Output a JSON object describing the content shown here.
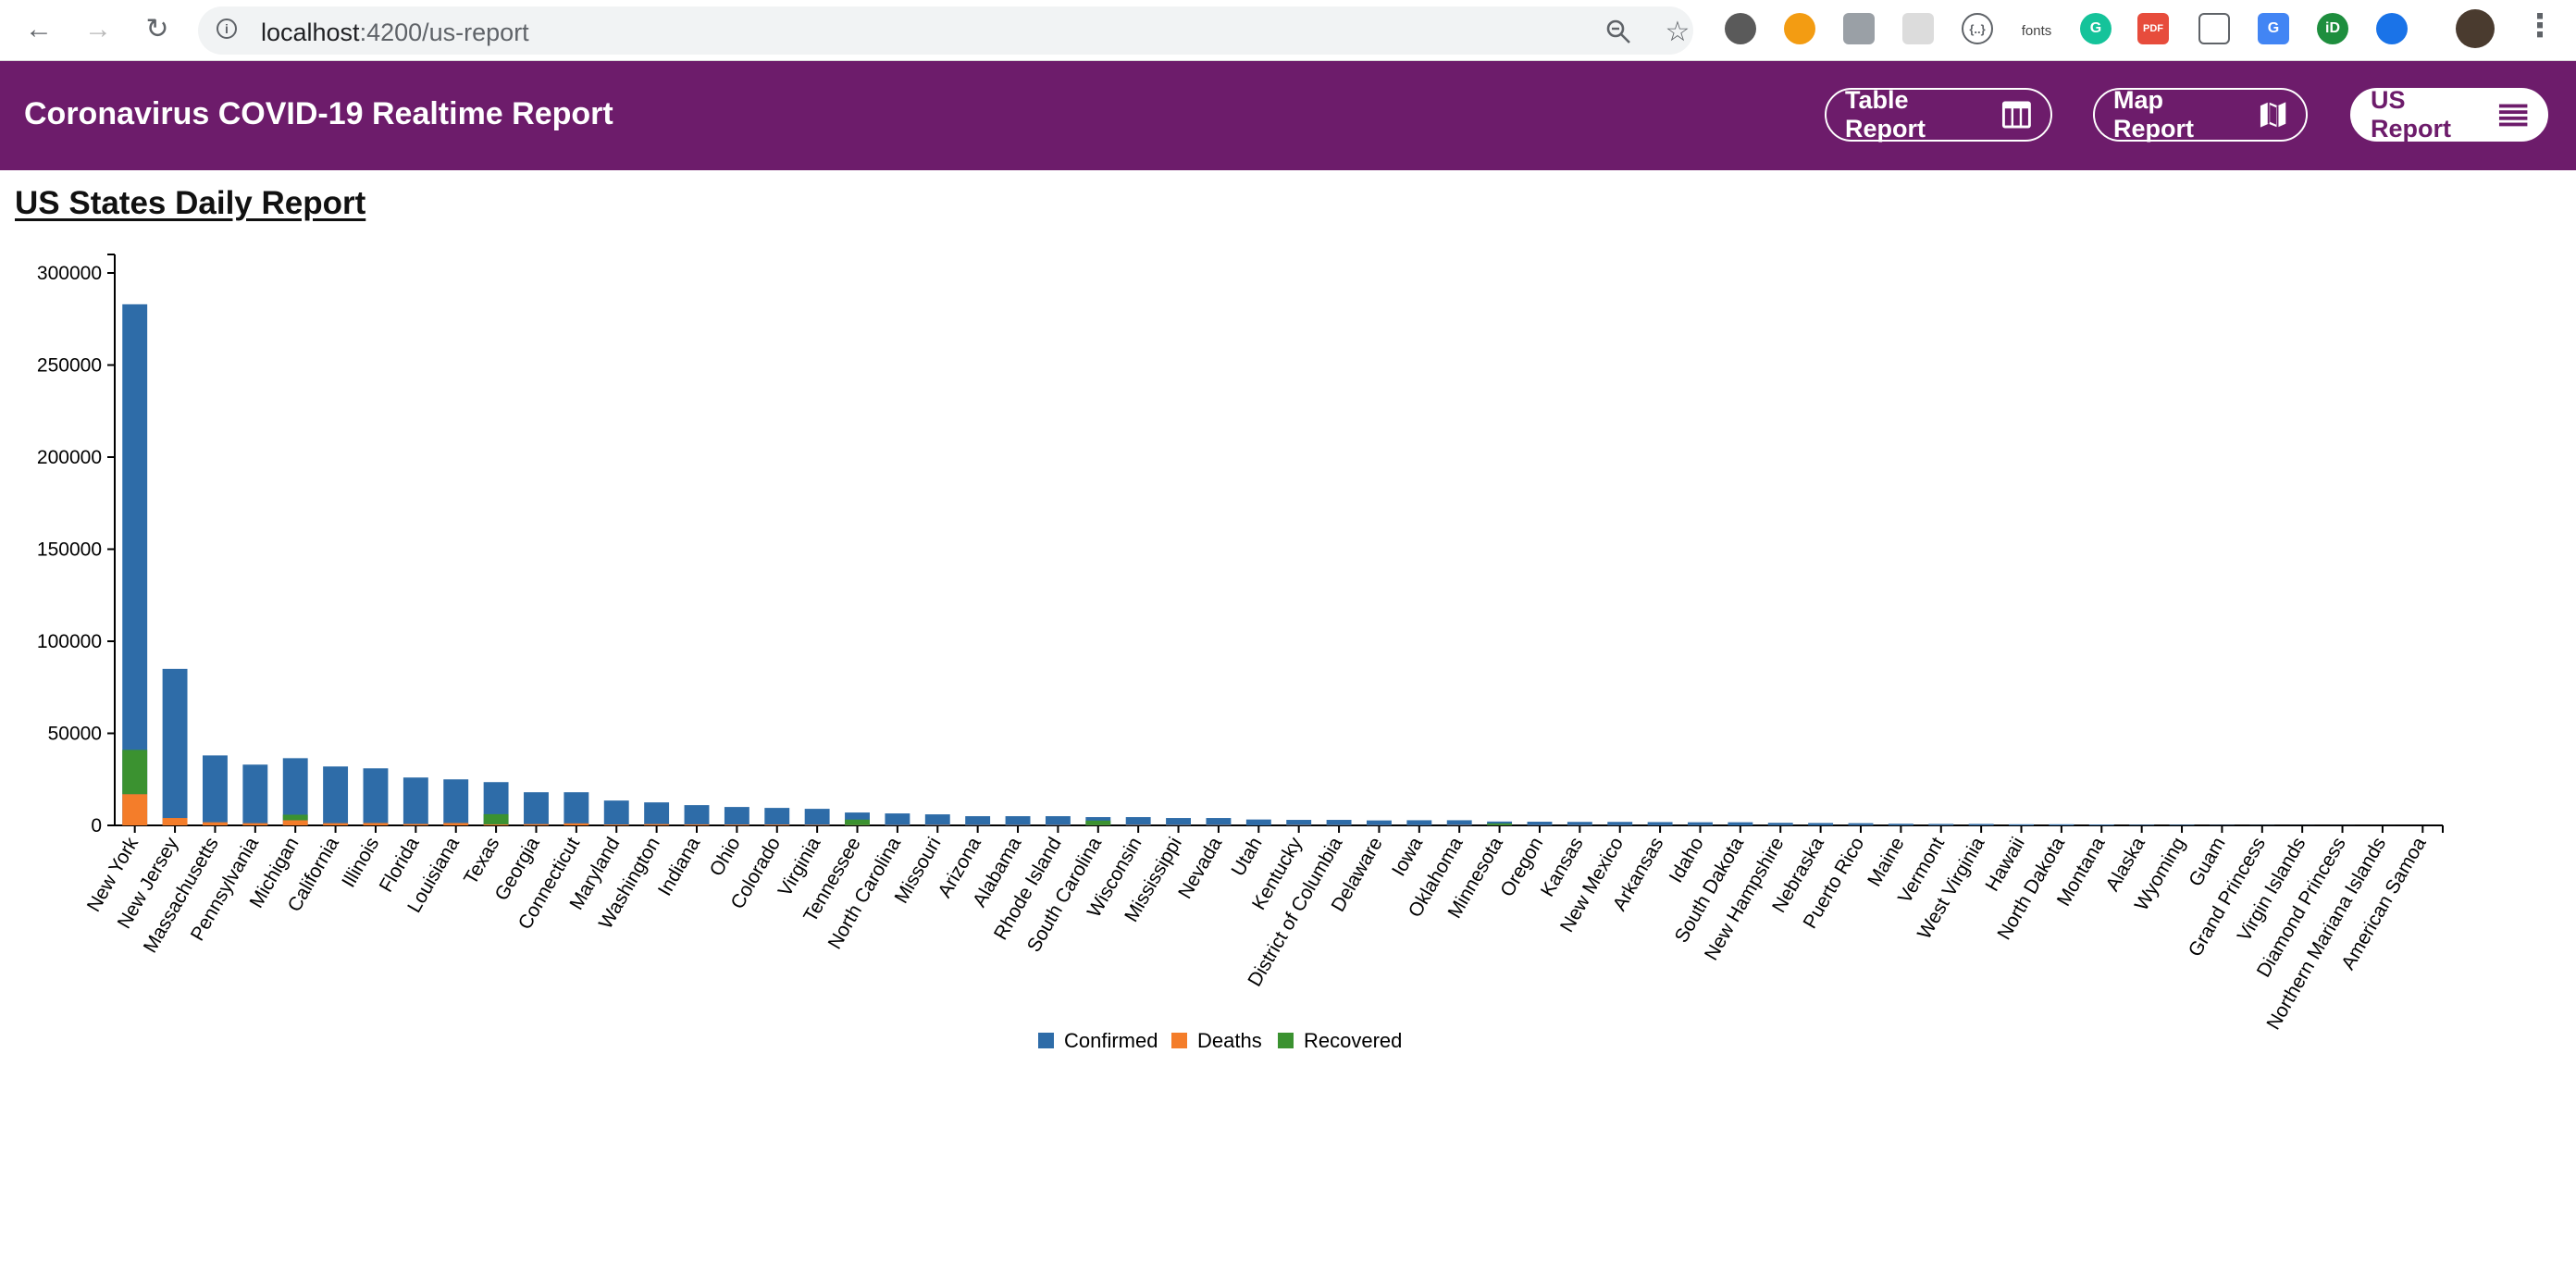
{
  "browser": {
    "url_host": "localhost",
    "url_path": ":4200/us-report",
    "extension_fonts_label": "fonts"
  },
  "header": {
    "title": "Coronavirus COVID-19 Realtime Report",
    "buttons": [
      {
        "label": "Table Report",
        "icon": "table-icon",
        "active": false
      },
      {
        "label": "Map Report",
        "icon": "map-icon",
        "active": false
      },
      {
        "label": "US Report",
        "icon": "menu-icon",
        "active": true
      }
    ],
    "colors": {
      "header_bg": "#6d1c6b",
      "button_text": "#ffffff"
    }
  },
  "page": {
    "title": "US States Daily Report"
  },
  "chart_data": {
    "type": "bar",
    "stacked": true,
    "categories": [
      "New York",
      "New Jersey",
      "Massachusetts",
      "Pennsylvania",
      "Michigan",
      "California",
      "Illinois",
      "Florida",
      "Louisiana",
      "Texas",
      "Georgia",
      "Connecticut",
      "Maryland",
      "Washington",
      "Indiana",
      "Ohio",
      "Colorado",
      "Virginia",
      "Tennessee",
      "North Carolina",
      "Missouri",
      "Arizona",
      "Alabama",
      "Rhode Island",
      "South Carolina",
      "Wisconsin",
      "Mississippi",
      "Nevada",
      "Utah",
      "Kentucky",
      "District of Columbia",
      "Delaware",
      "Iowa",
      "Oklahoma",
      "Minnesota",
      "Oregon",
      "Kansas",
      "New Mexico",
      "Arkansas",
      "Idaho",
      "South Dakota",
      "New Hampshire",
      "Nebraska",
      "Puerto Rico",
      "Maine",
      "Vermont",
      "West Virginia",
      "Hawaii",
      "North Dakota",
      "Montana",
      "Alaska",
      "Wyoming",
      "Guam",
      "Grand Princess",
      "Virgin Islands",
      "Diamond Princess",
      "Northern Mariana Islands",
      "American Samoa"
    ],
    "series": [
      {
        "name": "Confirmed",
        "color": "#2e6ca8",
        "values": [
          283000,
          85000,
          38000,
          33000,
          36500,
          32000,
          31000,
          26000,
          25000,
          23500,
          18000,
          18000,
          13500,
          12500,
          11000,
          10000,
          9500,
          9000,
          7000,
          6500,
          6000,
          5000,
          5000,
          5000,
          4500,
          4500,
          4000,
          4000,
          3200,
          3000,
          3000,
          2700,
          2800,
          2800,
          2100,
          2000,
          1900,
          1900,
          1800,
          1700,
          1700,
          1400,
          1300,
          1200,
          900,
          800,
          800,
          600,
          600,
          450,
          320,
          300,
          150,
          100,
          50,
          50,
          20,
          5
        ]
      },
      {
        "name": "Deaths",
        "color": "#f47d2a",
        "values": [
          17000,
          4000,
          1700,
          1200,
          2800,
          1200,
          1300,
          800,
          1300,
          600,
          700,
          1100,
          500,
          700,
          550,
          450,
          450,
          300,
          150,
          150,
          200,
          150,
          150,
          150,
          120,
          200,
          150,
          150,
          30,
          150,
          100,
          80,
          70,
          150,
          100,
          80,
          90,
          60,
          40,
          50,
          10,
          40,
          20,
          50,
          30,
          40,
          20,
          10,
          10,
          10,
          10,
          5,
          5,
          3,
          1,
          1,
          1,
          0
        ]
      },
      {
        "name": "Recovered",
        "color": "#3b9230",
        "values": [
          24000,
          0,
          0,
          0,
          3000,
          0,
          0,
          0,
          0,
          5500,
          0,
          0,
          0,
          0,
          0,
          0,
          0,
          0,
          3000,
          0,
          0,
          0,
          0,
          0,
          2500,
          0,
          0,
          0,
          0,
          0,
          0,
          0,
          0,
          0,
          1000,
          0,
          0,
          0,
          0,
          0,
          0,
          0,
          0,
          0,
          0,
          0,
          0,
          0,
          0,
          0,
          0,
          0,
          0,
          0,
          0,
          0,
          0,
          0
        ]
      }
    ],
    "yticks": [
      0,
      50000,
      100000,
      150000,
      200000,
      250000,
      300000
    ],
    "ylim": [
      0,
      300000
    ],
    "xlabel": "",
    "ylabel": "",
    "legend": "bottom-center",
    "grid": false
  }
}
